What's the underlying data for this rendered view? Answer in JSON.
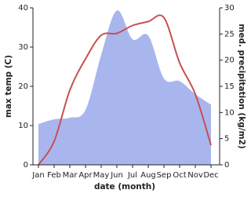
{
  "chart_data": {
    "type": "line-area",
    "categories": [
      "Jan",
      "Feb",
      "Mar",
      "Apr",
      "May",
      "Jun",
      "Jul",
      "Aug",
      "Sep",
      "Oct",
      "Nov",
      "Dec"
    ],
    "x_label": "date (month)",
    "y_label": "max temp (C)",
    "y2_label": "med. precipitation (kg/m2)",
    "ylim": [
      0,
      40
    ],
    "yticks": [
      0,
      10,
      20,
      30,
      40
    ],
    "y2lim": [
      0,
      30
    ],
    "y2ticks": [
      0,
      5,
      10,
      15,
      20,
      25,
      30
    ],
    "series": [
      {
        "name": "precipitation",
        "type": "area",
        "axis": "y2",
        "color": "#a9b6ee",
        "values": [
          7.8,
          8.7,
          9,
          10.5,
          21,
          29.5,
          24,
          24.7,
          16.5,
          16,
          13.5,
          11.5
        ]
      },
      {
        "name": "max temp",
        "type": "line",
        "axis": "y",
        "color": "#c8504e",
        "values": [
          0,
          6,
          19,
          27,
          33,
          33.5,
          35.5,
          36.5,
          37.5,
          26,
          18,
          5
        ]
      }
    ]
  }
}
